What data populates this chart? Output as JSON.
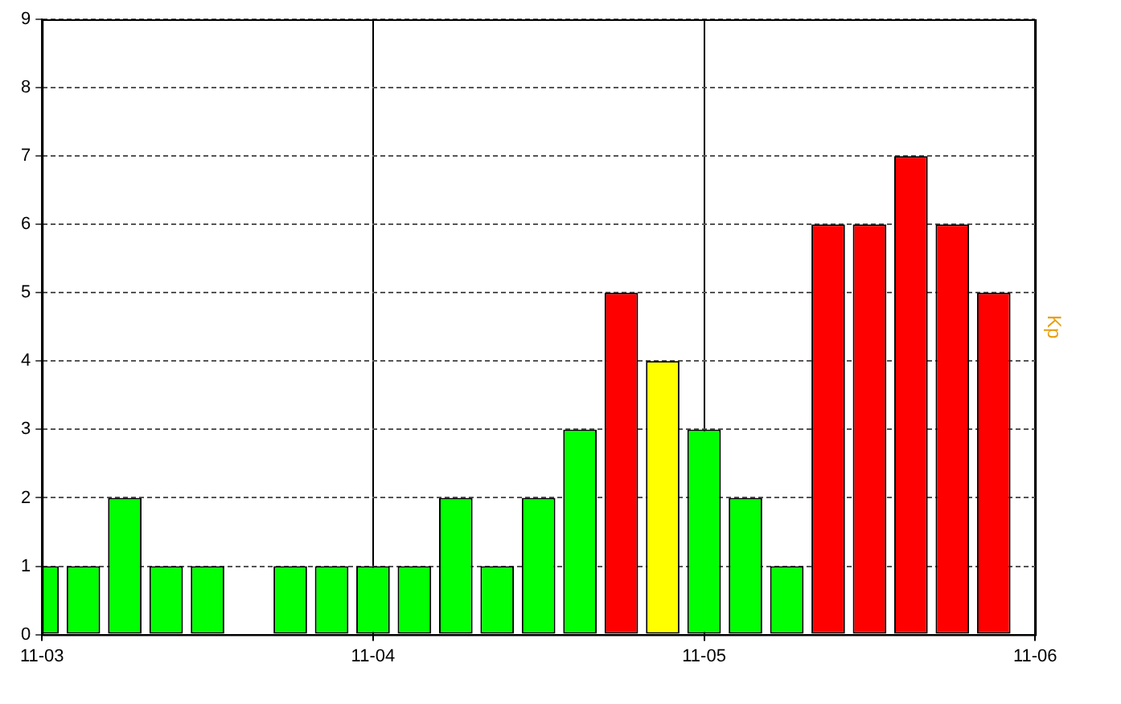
{
  "chart_data": {
    "type": "bar",
    "ylabel": "Kp",
    "categories": [
      "11-03",
      null,
      null,
      null,
      null,
      null,
      null,
      null,
      "11-04",
      null,
      null,
      null,
      null,
      null,
      null,
      null,
      "11-05",
      null,
      null,
      null,
      null,
      null,
      null,
      null,
      "11-06"
    ],
    "values": [
      1,
      1,
      2,
      1,
      1,
      null,
      1,
      1,
      1,
      1,
      2,
      1,
      2,
      3,
      5,
      4,
      3,
      2,
      1,
      6,
      6,
      7,
      6,
      5,
      null
    ],
    "colors": [
      "#00ff00",
      "#00ff00",
      "#00ff00",
      "#00ff00",
      "#00ff00",
      "#00ff00",
      "#00ff00",
      "#00ff00",
      "#00ff00",
      "#00ff00",
      "#00ff00",
      "#00ff00",
      "#00ff00",
      "#00ff00",
      "#ff0000",
      "#ffff00",
      "#00ff00",
      "#00ff00",
      "#00ff00",
      "#ff0000",
      "#ff0000",
      "#ff0000",
      "#ff0000",
      "#ff0000",
      "#ff0000"
    ],
    "ylim": [
      0,
      9
    ],
    "yticks": [
      0,
      1,
      2,
      3,
      4,
      5,
      6,
      7,
      8,
      9
    ],
    "grid": true
  }
}
